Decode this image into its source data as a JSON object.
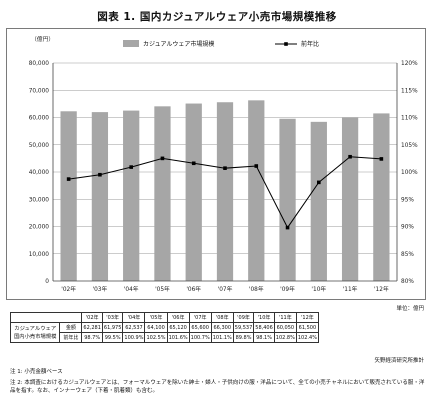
{
  "title": "図表 1. 国内カジュアルウェア小売市場規模推移",
  "chart_data": {
    "type": "bar",
    "categories": [
      "'02年",
      "'03年",
      "'04年",
      "'05年",
      "'06年",
      "'07年",
      "'08年",
      "'09年",
      "'10年",
      "'11年",
      "'12年"
    ],
    "series": [
      {
        "name": "カジュアルウェア市場規模",
        "type": "bar",
        "axis": "left",
        "values": [
          62281,
          61975,
          62537,
          64100,
          65120,
          65600,
          66300,
          59537,
          58406,
          60050,
          61500
        ],
        "color": "#a6a6a6"
      },
      {
        "name": "前年比",
        "type": "line",
        "axis": "right",
        "values": [
          98.7,
          99.5,
          100.9,
          102.5,
          101.6,
          100.7,
          101.1,
          89.8,
          98.1,
          102.8,
          102.4
        ],
        "color": "#000000"
      }
    ],
    "y_left": {
      "label": "（億円）",
      "min": 0,
      "max": 80000,
      "ticks": [
        "0",
        "10,000",
        "20,000",
        "30,000",
        "40,000",
        "50,000",
        "60,000",
        "70,000",
        "80,000"
      ]
    },
    "y_right": {
      "label": "",
      "min": 80,
      "max": 120,
      "ticks": [
        "80%",
        "85%",
        "90%",
        "95%",
        "100%",
        "105%",
        "110%",
        "115%",
        "120%"
      ]
    },
    "grid": true,
    "legend": "top"
  },
  "table": {
    "unit": "単位：億円",
    "header": [
      "'02年",
      "'03年",
      "'04年",
      "'05年",
      "'06年",
      "'07年",
      "'08年",
      "'09年",
      "'10年",
      "'11年",
      "'12年"
    ],
    "row_label_1": "カジュアルウェア",
    "row_label_2": "国内小売市場規模",
    "row1_label": "金額",
    "row1": [
      "62,281",
      "61,975",
      "62,537",
      "64,100",
      "65,120",
      "65,600",
      "66,300",
      "59,537",
      "58,406",
      "60,050",
      "61,500"
    ],
    "row2_label": "前年比",
    "row2": [
      "98.7%",
      "99.5%",
      "100.9%",
      "102.5%",
      "101.6%",
      "100.7%",
      "101.1%",
      "89.8%",
      "98.1%",
      "102.8%",
      "102.4%"
    ]
  },
  "source": "矢野経済研究所推計",
  "notes": [
    "注 1: 小売金額ベース",
    "注 2: 本調査におけるカジュアルウェアとは、フォーマルウェアを除いた紳士・婦人・子供向けの服・洋品について、全ての小売チャネルにおいて販売されている服・洋品を指す。なお、インナーウェア（下着・肌着類）も含む。"
  ]
}
